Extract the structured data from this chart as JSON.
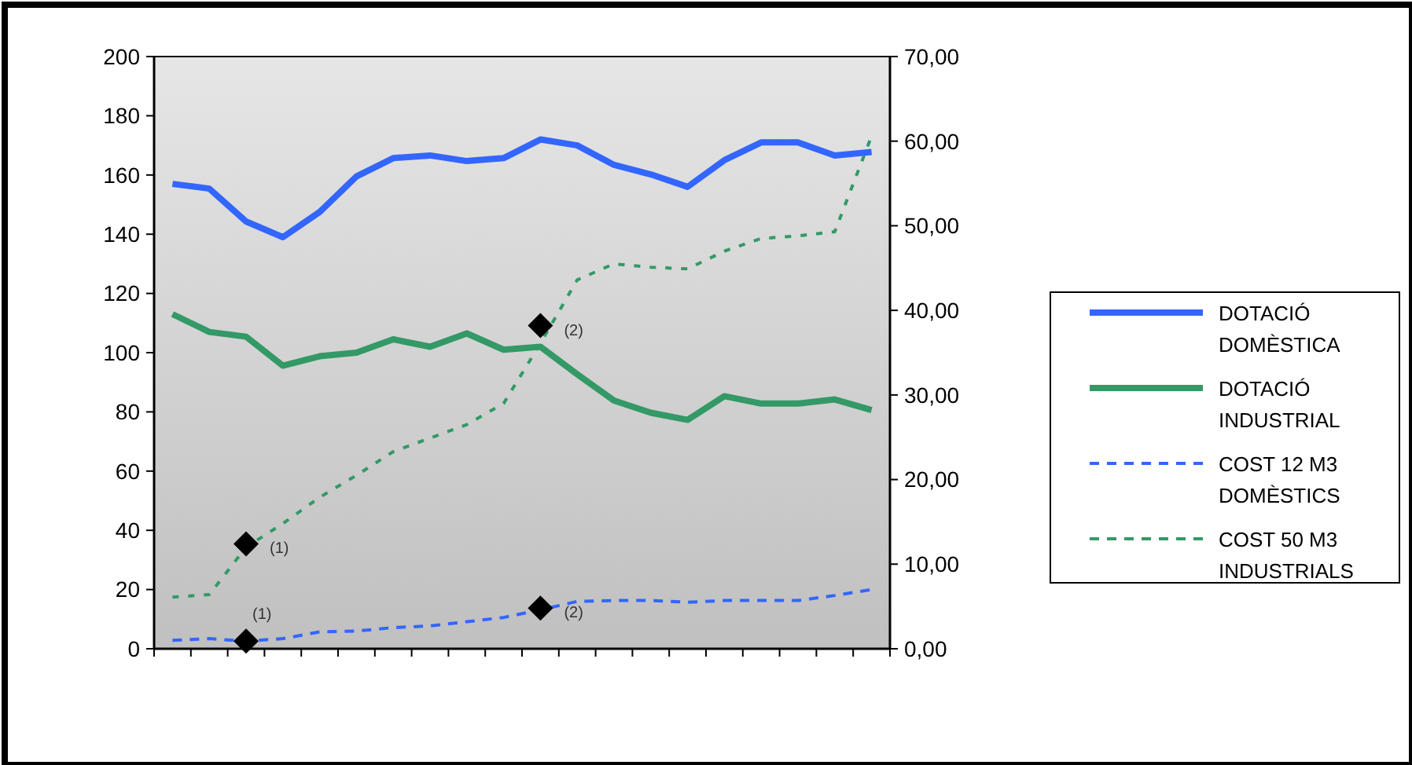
{
  "chart_data": {
    "type": "line",
    "categories": [
      null,
      null,
      null,
      null,
      null,
      null,
      null,
      null,
      null,
      null,
      null,
      null,
      null,
      null,
      null,
      null,
      null,
      null,
      null,
      null
    ],
    "ylim": [
      0,
      200
    ],
    "yticks": [
      0,
      20,
      40,
      60,
      80,
      100,
      120,
      140,
      160,
      180,
      200
    ],
    "y2lim": [
      0,
      70
    ],
    "y2ticks": [
      {
        "value": 0,
        "label": "0,00"
      },
      {
        "value": 10,
        "label": "10,00"
      },
      {
        "value": 20,
        "label": "20,00"
      },
      {
        "value": 30,
        "label": "30,00"
      },
      {
        "value": 40,
        "label": "40,00"
      },
      {
        "value": 50,
        "label": "50,00"
      },
      {
        "value": 60,
        "label": "60,00"
      },
      {
        "value": 70,
        "label": "70,00"
      }
    ],
    "tick_labels": "y",
    "annotations": [
      "(1)",
      "(2)",
      "(1)",
      "(2)"
    ],
    "legend": "right",
    "grid": false,
    "series": [
      {
        "name": "DOTACIÓ DOMÈSTICA",
        "color": "#3366ff",
        "line_style": "solid",
        "values": [
          157,
          155.4,
          144.3,
          139,
          147.5,
          159.5,
          165.7,
          166.6,
          164.7,
          165.7,
          172,
          170,
          163.4,
          160.2,
          156,
          165,
          171,
          171,
          166.6,
          167.8
        ]
      },
      {
        "name": "DOTACIÓ INDUSTRIAL",
        "color": "#339966",
        "line_style": "solid",
        "values": [
          113,
          107,
          105.4,
          95.6,
          98.8,
          100,
          104.5,
          102,
          106.5,
          101,
          102,
          92.7,
          83.8,
          79.7,
          77.3,
          85.3,
          82.8,
          82.8,
          84.2,
          80.6
        ]
      },
      {
        "name": "COST 12 M3 DOMÈSTICS",
        "color": "#3366ff",
        "line_style": "dashed",
        "axis": "y2",
        "values": [
          1,
          1.2,
          0.9,
          1.2,
          2,
          2.1,
          2.5,
          2.7,
          3.2,
          3.7,
          4.6,
          5.6,
          5.7,
          5.7,
          5.5,
          5.7,
          5.7,
          5.7,
          6.3,
          7
        ]
      },
      {
        "name": "COST 50 M3 INDUSTRIALS",
        "color": "#339966",
        "line_style": "dotted",
        "axis": "y2",
        "values": [
          6.1,
          6.4,
          12,
          14.8,
          17.9,
          20.5,
          23.3,
          24.9,
          26.5,
          29,
          36.1,
          43.6,
          45.5,
          45.1,
          44.9,
          47,
          48.5,
          48.8,
          49.3,
          60.6
        ]
      },
      {
        "type": "scatter",
        "marker": "diamond",
        "color": "#000000",
        "axis": "y2",
        "values": [
          null,
          null,
          12.4,
          null,
          null,
          null,
          null,
          null,
          null,
          null,
          38.2,
          null,
          null,
          null,
          null,
          null,
          null,
          null,
          null,
          null
        ]
      },
      {
        "type": "scatter",
        "marker": "diamond",
        "color": "#000000",
        "axis": "y2",
        "values": [
          null,
          null,
          0.9,
          null,
          null,
          null,
          null,
          null,
          null,
          null,
          4.8,
          null,
          null,
          null,
          null,
          null,
          null,
          null,
          null,
          null
        ]
      }
    ]
  }
}
